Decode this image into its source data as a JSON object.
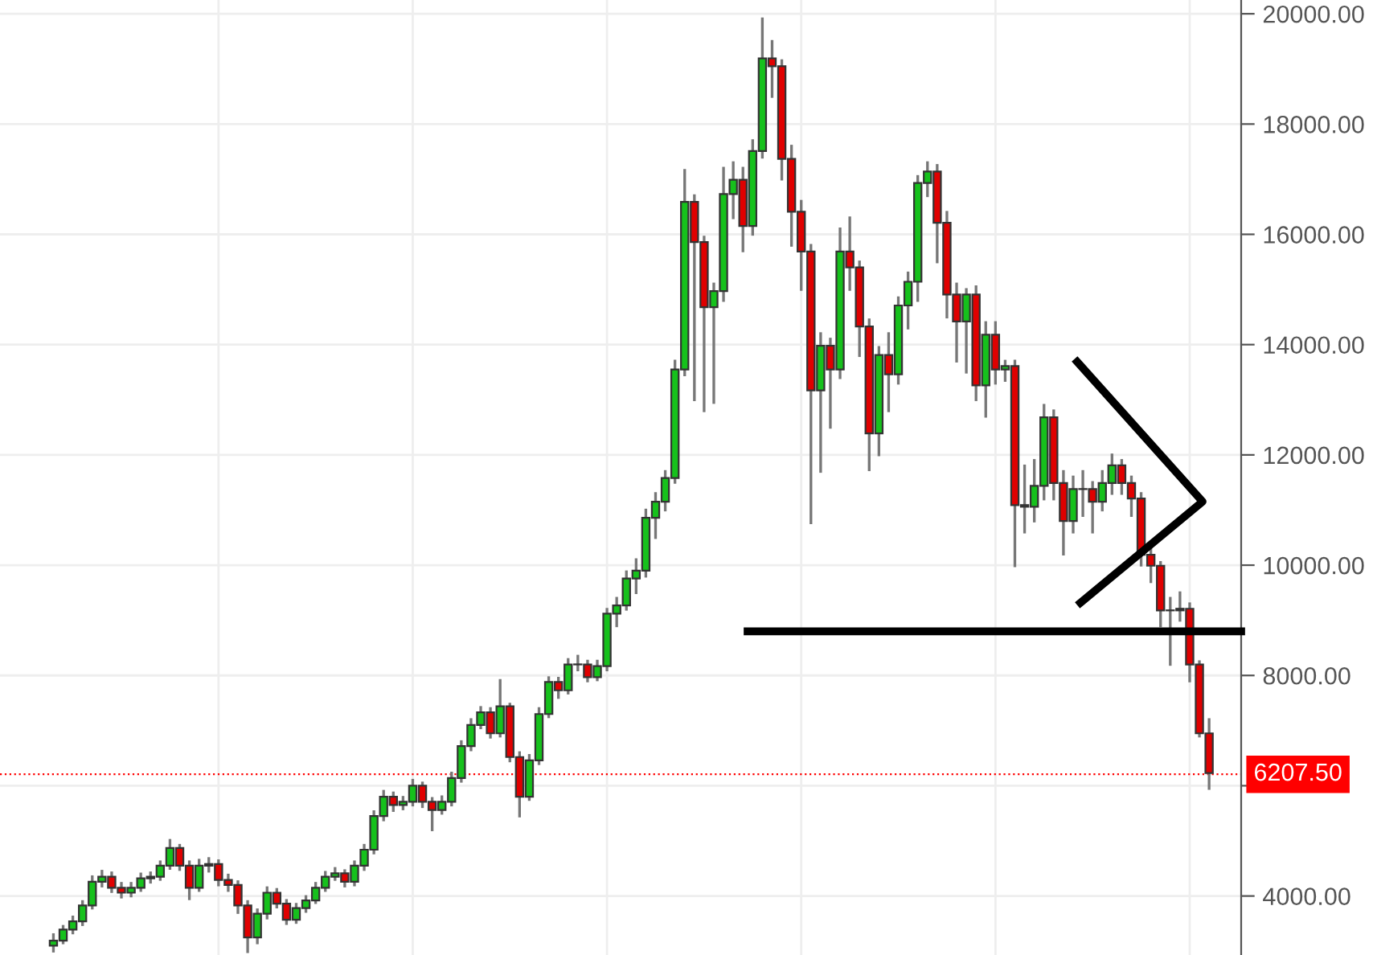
{
  "chart_data": {
    "type": "candlestick",
    "categories": [
      null,
      null,
      null,
      null,
      null,
      null,
      null,
      null,
      null,
      null,
      null,
      null,
      null,
      null,
      null,
      null,
      null,
      null,
      null,
      null,
      null,
      null,
      null,
      null,
      null,
      null,
      null,
      null,
      null,
      null,
      null,
      null,
      null,
      null,
      null,
      null,
      null,
      null,
      null,
      null,
      null,
      null,
      null,
      null,
      null,
      null,
      null,
      null,
      null,
      null,
      null,
      null,
      null,
      null,
      null,
      null,
      null,
      null,
      null,
      null,
      null,
      null,
      null,
      null,
      null,
      null,
      null,
      null,
      null,
      null,
      null,
      null,
      null,
      null,
      null,
      null,
      null,
      null,
      null,
      null,
      null,
      null,
      null,
      null,
      null,
      null,
      null,
      null,
      null,
      null,
      null,
      null,
      null,
      null,
      null,
      null,
      null,
      null,
      null,
      null,
      null,
      null,
      null,
      null,
      null,
      null,
      null,
      null,
      null,
      null,
      null,
      null,
      null,
      null,
      null,
      null,
      null,
      null,
      null,
      null
    ],
    "ohlc": [
      [
        3100,
        3300,
        3000,
        3190
      ],
      [
        3190,
        3450,
        3150,
        3390
      ],
      [
        3390,
        3620,
        3330,
        3540
      ],
      [
        3540,
        3900,
        3480,
        3830
      ],
      [
        3830,
        4350,
        3780,
        4260
      ],
      [
        4260,
        4450,
        4180,
        4350
      ],
      [
        4350,
        4420,
        4080,
        4150
      ],
      [
        4150,
        4230,
        3980,
        4060
      ],
      [
        4060,
        4230,
        4000,
        4150
      ],
      [
        4150,
        4400,
        4100,
        4320
      ],
      [
        4320,
        4420,
        4250,
        4350
      ],
      [
        4350,
        4620,
        4300,
        4550
      ],
      [
        4550,
        5010,
        4500,
        4870
      ],
      [
        4870,
        4920,
        4480,
        4550
      ],
      [
        4550,
        4620,
        3950,
        4150
      ],
      [
        4150,
        4650,
        4100,
        4550
      ],
      [
        4550,
        4680,
        4450,
        4580
      ],
      [
        4580,
        4640,
        4200,
        4290
      ],
      [
        4290,
        4380,
        4100,
        4200
      ],
      [
        4200,
        4260,
        3700,
        3830
      ],
      [
        3830,
        3900,
        2990,
        3250
      ],
      [
        3250,
        3750,
        3150,
        3680
      ],
      [
        3680,
        4150,
        3600,
        4060
      ],
      [
        4060,
        4120,
        3800,
        3860
      ],
      [
        3860,
        3920,
        3500,
        3570
      ],
      [
        3570,
        3850,
        3520,
        3780
      ],
      [
        3780,
        3990,
        3720,
        3920
      ],
      [
        3920,
        4230,
        3880,
        4150
      ],
      [
        4150,
        4430,
        4100,
        4350
      ],
      [
        4350,
        4500,
        4300,
        4410
      ],
      [
        4410,
        4460,
        4180,
        4260
      ],
      [
        4260,
        4620,
        4200,
        4550
      ],
      [
        4550,
        4920,
        4480,
        4840
      ],
      [
        4840,
        5530,
        4780,
        5450
      ],
      [
        5450,
        5900,
        5380,
        5800
      ],
      [
        5800,
        5870,
        5550,
        5650
      ],
      [
        5650,
        5790,
        5580,
        5710
      ],
      [
        5710,
        6100,
        5650,
        6000
      ],
      [
        6000,
        6050,
        5620,
        5710
      ],
      [
        5710,
        5770,
        5200,
        5560
      ],
      [
        5560,
        5800,
        5500,
        5710
      ],
      [
        5710,
        6230,
        5650,
        6140
      ],
      [
        6140,
        6800,
        6080,
        6720
      ],
      [
        6720,
        7200,
        6650,
        7100
      ],
      [
        7100,
        7420,
        7050,
        7330
      ],
      [
        7330,
        7400,
        6880,
        6950
      ],
      [
        6950,
        7910,
        6900,
        7440
      ],
      [
        7440,
        7480,
        6450,
        6520
      ],
      [
        6520,
        6600,
        5450,
        5800
      ],
      [
        5800,
        6550,
        5750,
        6460
      ],
      [
        6460,
        7400,
        6400,
        7300
      ],
      [
        7300,
        7960,
        7250,
        7880
      ],
      [
        7880,
        7950,
        7600,
        7730
      ],
      [
        7730,
        8290,
        7680,
        8200
      ],
      [
        8200,
        8350,
        8100,
        8200
      ],
      [
        8200,
        8260,
        7900,
        7970
      ],
      [
        7970,
        8260,
        7920,
        8170
      ],
      [
        8170,
        9200,
        8100,
        9120
      ],
      [
        9120,
        9400,
        8900,
        9270
      ],
      [
        9270,
        9880,
        9200,
        9760
      ],
      [
        9760,
        10100,
        9500,
        9900
      ],
      [
        9900,
        11000,
        9800,
        10860
      ],
      [
        10860,
        11300,
        10500,
        11150
      ],
      [
        11150,
        11700,
        11000,
        11580
      ],
      [
        11580,
        13700,
        11500,
        13550
      ],
      [
        13550,
        17160,
        13450,
        16590
      ],
      [
        16590,
        16700,
        13000,
        15860
      ],
      [
        15860,
        15950,
        12800,
        14680
      ],
      [
        14680,
        15100,
        12950,
        14970
      ],
      [
        14970,
        17200,
        14800,
        16730
      ],
      [
        16730,
        17300,
        16300,
        16990
      ],
      [
        16990,
        17200,
        15700,
        16150
      ],
      [
        16150,
        17700,
        16000,
        17510
      ],
      [
        17510,
        19910,
        17400,
        19190
      ],
      [
        19190,
        19500,
        18500,
        19050
      ],
      [
        19050,
        19150,
        17000,
        17370
      ],
      [
        17370,
        17600,
        15800,
        16410
      ],
      [
        16410,
        16600,
        15000,
        15690
      ],
      [
        15690,
        15800,
        10770,
        13170
      ],
      [
        13170,
        14200,
        11700,
        13980
      ],
      [
        13980,
        14100,
        12500,
        13550
      ],
      [
        13550,
        16100,
        13400,
        15690
      ],
      [
        15690,
        16300,
        15000,
        15400
      ],
      [
        15400,
        15500,
        13800,
        14330
      ],
      [
        14330,
        14450,
        11730,
        12390
      ],
      [
        12390,
        13950,
        12000,
        13810
      ],
      [
        13810,
        14200,
        12800,
        13460
      ],
      [
        13460,
        14850,
        13300,
        14710
      ],
      [
        14710,
        15300,
        14300,
        15140
      ],
      [
        15140,
        17050,
        14800,
        16930
      ],
      [
        16930,
        17300,
        16700,
        17140
      ],
      [
        17140,
        17250,
        15500,
        16210
      ],
      [
        16210,
        16400,
        14500,
        14910
      ],
      [
        14910,
        15100,
        13700,
        14420
      ],
      [
        14420,
        15000,
        13500,
        14910
      ],
      [
        14910,
        15050,
        13000,
        13260
      ],
      [
        13260,
        14400,
        12700,
        14180
      ],
      [
        14180,
        14400,
        13300,
        13550
      ],
      [
        13550,
        13700,
        13350,
        13610
      ],
      [
        13610,
        13700,
        9990,
        11090
      ],
      [
        11090,
        11800,
        10600,
        11060
      ],
      [
        11060,
        11900,
        10800,
        11440
      ],
      [
        11440,
        12900,
        11200,
        12680
      ],
      [
        12680,
        12800,
        11200,
        11490
      ],
      [
        11490,
        11700,
        10200,
        10800
      ],
      [
        10800,
        11600,
        10600,
        11380
      ],
      [
        11380,
        11700,
        10900,
        11380
      ],
      [
        11380,
        11500,
        10600,
        11150
      ],
      [
        11150,
        11700,
        11000,
        11490
      ],
      [
        11490,
        12000,
        11300,
        11810
      ],
      [
        11810,
        11900,
        11300,
        11490
      ],
      [
        11490,
        11600,
        10900,
        11210
      ],
      [
        11210,
        11300,
        10000,
        10190
      ],
      [
        10190,
        10300,
        9700,
        9990
      ],
      [
        9990,
        10050,
        8900,
        9180
      ],
      [
        9180,
        9400,
        8200,
        9180
      ],
      [
        9180,
        9500,
        9000,
        9210
      ],
      [
        9210,
        9300,
        7900,
        8200
      ],
      [
        8200,
        8250,
        6900,
        6950
      ],
      [
        6950,
        7200,
        5950,
        6230
      ]
    ],
    "ylim": [
      2930,
      20250
    ],
    "yticks": [
      {
        "value": 4000,
        "label": "4000.00"
      },
      {
        "value": 6000,
        "label": null
      },
      {
        "value": 8000,
        "label": "8000.00"
      },
      {
        "value": 10000,
        "label": "10000.00"
      },
      {
        "value": 12000,
        "label": "12000.00"
      },
      {
        "value": 14000,
        "label": "14000.00"
      },
      {
        "value": 16000,
        "label": "16000.00"
      },
      {
        "value": 18000,
        "label": "18000.00"
      },
      {
        "value": 20000,
        "label": "20000.00"
      }
    ],
    "tick_labels": "y",
    "grid": true,
    "ref_lines": [
      {
        "axis": "y",
        "value": 8800,
        "color": "#000000",
        "line_style": "solid"
      },
      {
        "axis": "y",
        "value": 6207.5,
        "label": "6207.50",
        "color": "#ff0000",
        "line_style": "dotted"
      }
    ]
  }
}
